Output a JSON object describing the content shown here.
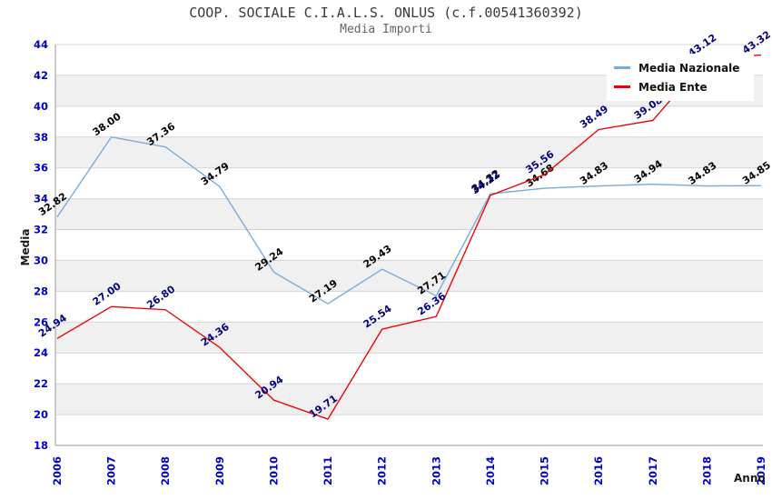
{
  "chart_data": {
    "type": "line",
    "title": "COOP. SOCIALE C.I.A.L.S. ONLUS (c.f.00541360392)",
    "subtitle": "Media Importi",
    "xlabel": "Anno",
    "ylabel": "Media",
    "x": [
      "2006",
      "2007",
      "2008",
      "2009",
      "2010",
      "2011",
      "2012",
      "2013",
      "2014",
      "2015",
      "2016",
      "2017",
      "2018",
      "2019"
    ],
    "ylim": [
      18,
      44
    ],
    "ytick_step": 2,
    "grid": true,
    "legend_position": "top-right",
    "colors": {
      "tick_label": "#0000cc",
      "gridline": "#d4d4d4",
      "band_alt": "#f0f0f0",
      "spine": "#aaaaaa",
      "title_text": "#3a3a3a",
      "subtitle_text": "#666666"
    },
    "series": [
      {
        "name": "Media Nazionale",
        "color": "#75aadd",
        "label_color": "#000000",
        "values": [
          32.82,
          38.0,
          37.36,
          34.79,
          29.24,
          27.19,
          29.43,
          27.71,
          34.32,
          34.68,
          34.83,
          34.94,
          34.83,
          34.85
        ]
      },
      {
        "name": "Media Ente",
        "color": "#ee0000",
        "label_color": "#000080",
        "values": [
          24.94,
          27.0,
          26.8,
          24.36,
          20.94,
          19.71,
          25.54,
          26.36,
          34.22,
          35.56,
          38.49,
          39.08,
          43.12,
          43.32
        ]
      }
    ]
  }
}
